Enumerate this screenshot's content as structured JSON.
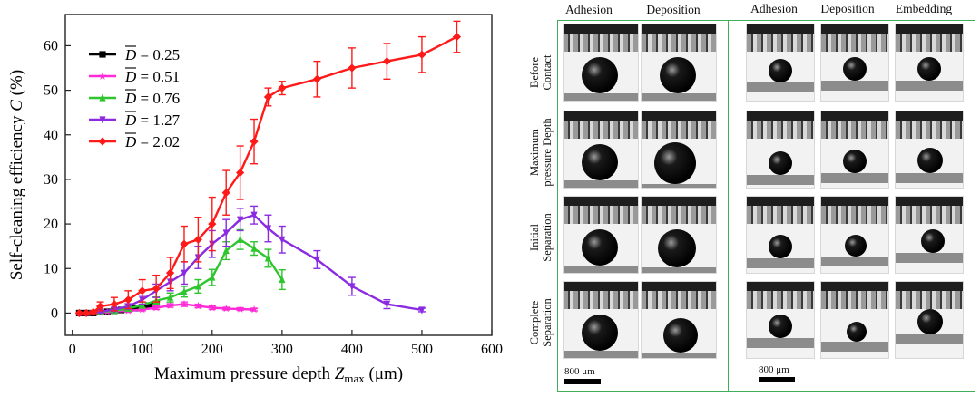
{
  "chart_data": {
    "type": "line",
    "xlabel_main": "Maximum pressure depth ",
    "xlabel_var": "Z",
    "xlabel_sub": "max",
    "xlabel_unit": " (μm)",
    "ylabel_main": "Self-cleaning efficiency ",
    "ylabel_var": "C",
    "ylabel_unit": " (%)",
    "xlim": [
      -10,
      600
    ],
    "ylim": [
      -5,
      67
    ],
    "xticks": [
      "0",
      "100",
      "200",
      "300",
      "400",
      "500",
      "600"
    ],
    "xtick_values": [
      0,
      100,
      200,
      300,
      400,
      500,
      600
    ],
    "yticks": [
      "0",
      "10",
      "20",
      "30",
      "40",
      "50",
      "60"
    ],
    "ytick_values": [
      0,
      10,
      20,
      30,
      40,
      50,
      60
    ],
    "series": [
      {
        "name": "D = 0.25",
        "legend_symbol": "D",
        "legend_value": "= 0.25",
        "color": "#000000",
        "marker": "square",
        "x": [
          10,
          20,
          30,
          40,
          50,
          60,
          70,
          80,
          90,
          100,
          110,
          120
        ],
        "y": [
          0,
          0,
          0,
          0.2,
          0.3,
          0.5,
          0.7,
          0.9,
          1.1,
          1.4,
          1.7,
          2.0
        ],
        "err": [
          0,
          0,
          0,
          0.2,
          0.2,
          0.3,
          0.3,
          0.4,
          0.4,
          0.5,
          0.5,
          0.6
        ]
      },
      {
        "name": "D = 0.51",
        "legend_symbol": "D",
        "legend_value": "= 0.51",
        "color": "#ff2bd6",
        "marker": "star",
        "x": [
          10,
          20,
          30,
          40,
          50,
          60,
          80,
          100,
          120,
          140,
          160,
          180,
          200,
          220,
          240,
          260
        ],
        "y": [
          0,
          0,
          0.1,
          0.2,
          0.3,
          0.4,
          0.5,
          0.8,
          1.2,
          1.7,
          2.0,
          1.6,
          1.2,
          1.0,
          0.9,
          0.8
        ],
        "err": [
          0,
          0,
          0.1,
          0.1,
          0.2,
          0.2,
          0.3,
          0.3,
          0.4,
          0.4,
          0.5,
          0.4,
          0.4,
          0.3,
          0.3,
          0.3
        ]
      },
      {
        "name": "D = 0.76",
        "legend_symbol": "D",
        "legend_value": "= 0.76",
        "color": "#2fc52f",
        "marker": "triangle-up",
        "x": [
          40,
          60,
          80,
          100,
          120,
          140,
          160,
          180,
          200,
          220,
          240,
          260,
          280,
          300
        ],
        "y": [
          0.3,
          0.5,
          1.0,
          1.8,
          2.8,
          3.5,
          4.8,
          6.0,
          8.0,
          14.0,
          16.5,
          14.5,
          12.3,
          7.5
        ],
        "err": [
          0.2,
          0.3,
          0.5,
          0.7,
          0.8,
          1.0,
          1.2,
          1.5,
          1.8,
          2.0,
          2.2,
          1.5,
          2.0,
          2.2
        ]
      },
      {
        "name": "D = 1.27",
        "legend_symbol": "D",
        "legend_value": "= 1.27",
        "color": "#8a2be2",
        "marker": "triangle-down",
        "x": [
          40,
          60,
          80,
          100,
          120,
          140,
          160,
          180,
          200,
          220,
          240,
          260,
          280,
          300,
          350,
          400,
          450,
          500
        ],
        "y": [
          0.3,
          0.8,
          1.5,
          3.0,
          5.0,
          7.0,
          9.0,
          12.5,
          15.5,
          18.0,
          21.0,
          22.0,
          19.0,
          16.5,
          12.0,
          6.0,
          2.0,
          0.7
        ],
        "err": [
          0.2,
          0.4,
          0.6,
          1.0,
          1.5,
          2.0,
          2.5,
          2.5,
          3.0,
          3.0,
          2.5,
          2.0,
          3.0,
          3.0,
          2.0,
          2.0,
          1.0,
          0.4
        ]
      },
      {
        "name": "D = 2.02",
        "legend_symbol": "D",
        "legend_value": "= 2.02",
        "color": "#ff1a1a",
        "marker": "diamond",
        "x": [
          10,
          20,
          30,
          40,
          60,
          80,
          100,
          120,
          140,
          160,
          180,
          200,
          220,
          240,
          260,
          280,
          300,
          350,
          400,
          450,
          500,
          550
        ],
        "y": [
          0,
          0,
          0.2,
          1.5,
          2.0,
          3.0,
          5.0,
          5.5,
          9.0,
          15.5,
          16.5,
          20.0,
          27.0,
          31.5,
          38.5,
          48.5,
          50.5,
          52.5,
          55.0,
          56.5,
          58.0,
          62.0
        ],
        "err": [
          0,
          0,
          0.3,
          1.0,
          1.5,
          2.0,
          2.5,
          3.0,
          3.5,
          4.0,
          5.0,
          6.0,
          5.0,
          6.0,
          5.0,
          2.0,
          1.5,
          4.0,
          4.5,
          4.0,
          4.0,
          3.5
        ]
      }
    ]
  },
  "panel": {
    "left_headers": [
      "Adhesion",
      "Deposition"
    ],
    "right_headers": [
      "Adhesion",
      "Deposition",
      "Embedding"
    ],
    "row_labels": [
      "Before\nContact",
      "Maximum\npressure Depth",
      "Initial\nSeparation",
      "Complete\nSeparation"
    ],
    "scale_label_left": "800 μm",
    "scale_label_right": "800 μm",
    "frame_color": "#3fae5b"
  }
}
